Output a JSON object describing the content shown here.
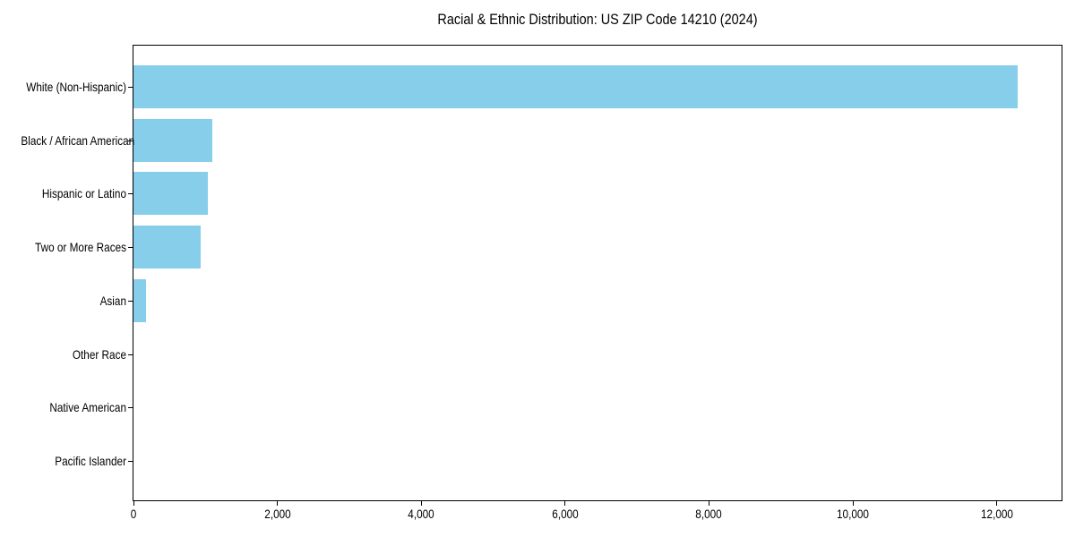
{
  "figure": {
    "background": "#ffffff"
  },
  "chart_data": {
    "type": "bar",
    "orientation": "horizontal",
    "title": "Racial & Ethnic Distribution: US ZIP Code 14210 (2024)",
    "categories": [
      "White (Non-Hispanic)",
      "Black / African American",
      "Hispanic or Latino",
      "Two or More Races",
      "Asian",
      "Other Race",
      "Native American",
      "Pacific Islander"
    ],
    "values": [
      12285,
      1100,
      1035,
      935,
      175,
      0,
      0,
      0
    ],
    "bar_color": "#87CEEB",
    "axis_color": "#000000",
    "text_color": "#000000",
    "xlabel": "",
    "ylabel": "",
    "xlim": [
      0,
      12900
    ],
    "xticks": [
      0,
      2000,
      4000,
      6000,
      8000,
      10000,
      12000
    ],
    "xtick_labels": [
      "0",
      "2,000",
      "4,000",
      "6,000",
      "8,000",
      "10,000",
      "12,000"
    ],
    "grid": false,
    "legend": "none"
  }
}
